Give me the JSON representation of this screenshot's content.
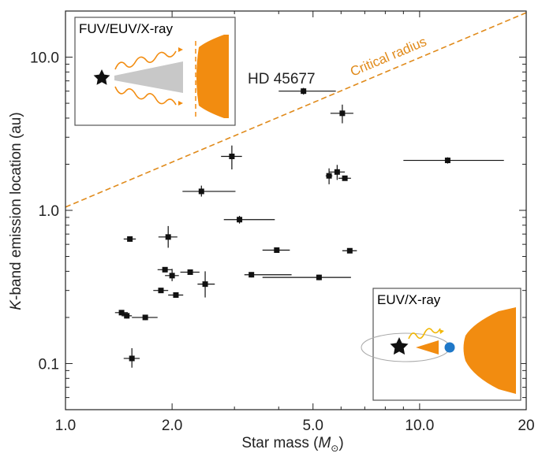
{
  "chart_data": {
    "type": "scatter",
    "xscale": "log",
    "yscale": "log",
    "xlim": [
      1.0,
      20.0
    ],
    "ylim": [
      0.05,
      20.0
    ],
    "xticks": [
      1.0,
      2.0,
      5.0,
      10.0,
      20
    ],
    "xtick_labels": [
      "1.0",
      "2.0",
      "5.0",
      "10.0",
      "20"
    ],
    "yticks": [
      0.1,
      1.0,
      10.0
    ],
    "ytick_labels": [
      "0.1",
      "1.0",
      "10.0"
    ],
    "xlabel_main": "Star mass (",
    "xlabel_symbol": "M",
    "xlabel_sub": "⊙",
    "xlabel_end": ")",
    "ylabel_italic": "K",
    "ylabel_rest": "-band emission location (au)",
    "critical_line": {
      "label": "Critical radius",
      "color": "#e08a1a",
      "points": [
        [
          1.0,
          1.05
        ],
        [
          20.0,
          19.5
        ]
      ]
    },
    "annotation": {
      "text": "HD 45677",
      "x": 4.7,
      "y": 6.0
    },
    "points": [
      {
        "x": 1.44,
        "y": 0.215,
        "xerr": [
          0.06,
          0.06
        ],
        "yerr": [
          0.008,
          0.008
        ]
      },
      {
        "x": 1.49,
        "y": 0.205,
        "xerr": [
          0.05,
          0.05
        ],
        "yerr": [
          0.008,
          0.008
        ]
      },
      {
        "x": 1.52,
        "y": 0.65,
        "xerr": [
          0.06,
          0.06
        ],
        "yerr": [
          0.025,
          0.025
        ]
      },
      {
        "x": 1.54,
        "y": 0.108,
        "xerr": [
          0.08,
          0.08
        ],
        "yerr": [
          0.014,
          0.018
        ]
      },
      {
        "x": 1.68,
        "y": 0.2,
        "xerr": [
          0.14,
          0.14
        ],
        "yerr": [
          0.008,
          0.008
        ]
      },
      {
        "x": 1.86,
        "y": 0.3,
        "xerr": [
          0.09,
          0.09
        ],
        "yerr": [
          0.01,
          0.01
        ]
      },
      {
        "x": 1.91,
        "y": 0.41,
        "xerr": [
          0.09,
          0.09
        ],
        "yerr": [
          0.014,
          0.014
        ]
      },
      {
        "x": 1.95,
        "y": 0.67,
        "xerr": [
          0.12,
          0.12
        ],
        "yerr": [
          0.1,
          0.12
        ]
      },
      {
        "x": 2.0,
        "y": 0.375,
        "xerr": [
          0.09,
          0.09
        ],
        "yerr": [
          0.03,
          0.04
        ]
      },
      {
        "x": 2.05,
        "y": 0.28,
        "xerr": [
          0.1,
          0.1
        ],
        "yerr": [
          0.01,
          0.01
        ]
      },
      {
        "x": 2.25,
        "y": 0.395,
        "xerr": [
          0.14,
          0.14
        ],
        "yerr": [
          0.012,
          0.012
        ]
      },
      {
        "x": 2.42,
        "y": 1.33,
        "xerr": [
          0.28,
          0.6
        ],
        "yerr": [
          0.1,
          0.12
        ]
      },
      {
        "x": 2.48,
        "y": 0.33,
        "xerr": [
          0.12,
          0.16
        ],
        "yerr": [
          0.06,
          0.07
        ]
      },
      {
        "x": 2.95,
        "y": 2.25,
        "xerr": [
          0.2,
          0.2
        ],
        "yerr": [
          0.4,
          0.4
        ]
      },
      {
        "x": 3.1,
        "y": 0.87,
        "xerr": [
          0.3,
          0.8
        ],
        "yerr": [
          0.05,
          0.05
        ]
      },
      {
        "x": 3.35,
        "y": 0.38,
        "xerr": [
          0.15,
          1.0
        ],
        "yerr": [
          0.015,
          0.015
        ]
      },
      {
        "x": 3.95,
        "y": 0.55,
        "xerr": [
          0.35,
          0.35
        ],
        "yerr": [
          0.015,
          0.015
        ]
      },
      {
        "x": 4.7,
        "y": 6.0,
        "xerr": [
          0.7,
          1.1
        ],
        "yerr": [
          0.3,
          0.3
        ]
      },
      {
        "x": 5.2,
        "y": 0.365,
        "xerr": [
          1.6,
          1.2
        ],
        "yerr": [
          0.015,
          0.015
        ]
      },
      {
        "x": 5.55,
        "y": 1.68,
        "xerr": [
          0.12,
          0.12
        ],
        "yerr": [
          0.2,
          0.2
        ]
      },
      {
        "x": 5.85,
        "y": 1.78,
        "xerr": [
          0.3,
          0.3
        ],
        "yerr": [
          0.2,
          0.2
        ]
      },
      {
        "x": 6.05,
        "y": 4.3,
        "xerr": [
          0.45,
          0.45
        ],
        "yerr": [
          0.6,
          0.6
        ]
      },
      {
        "x": 6.15,
        "y": 1.62,
        "xerr": [
          0.25,
          0.25
        ],
        "yerr": [
          0.05,
          0.05
        ]
      },
      {
        "x": 6.35,
        "y": 0.545,
        "xerr": [
          0.3,
          0.3
        ],
        "yerr": [
          0.02,
          0.02
        ]
      },
      {
        "x": 12.0,
        "y": 2.12,
        "xerr": [
          3.0,
          5.3
        ],
        "yerr": [
          0.1,
          0.1
        ]
      }
    ],
    "insets": [
      {
        "title": "FUV/EUV/X-ray",
        "title_color": "#f28c28"
      },
      {
        "title": "EUV/X-ray",
        "title_color": "#f2b705"
      }
    ],
    "colors": {
      "orange": "#f28c10",
      "grey_disk": "#c8c8c8",
      "planet_blue": "#1f78c8",
      "axis": "#222222"
    }
  }
}
